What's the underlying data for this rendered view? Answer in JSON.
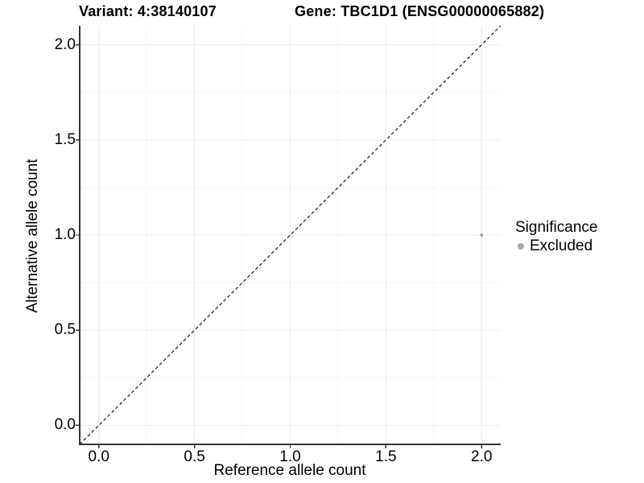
{
  "chart_data": {
    "type": "scatter",
    "titles": [
      {
        "text": "Variant: 4:38140107"
      },
      {
        "text": "Gene: TBC1D1 (ENSG00000065882)"
      }
    ],
    "xlabel": "Reference allele count",
    "ylabel": "Alternative allele count",
    "xlim": [
      -0.1,
      2.1
    ],
    "ylim": [
      -0.1,
      2.1
    ],
    "xticks": [
      0.0,
      0.5,
      1.0,
      1.5,
      2.0
    ],
    "yticks": [
      0.0,
      0.5,
      1.0,
      1.5,
      2.0
    ],
    "xtick_labels": [
      "0.0",
      "0.5",
      "1.0",
      "1.5",
      "2.0"
    ],
    "ytick_labels": [
      "0.0",
      "0.5",
      "1.0",
      "1.5",
      "2.0"
    ],
    "grid": {
      "major": true,
      "minor": true
    },
    "identity_line": {
      "slope": 1,
      "intercept": 0,
      "linetype": "dashed",
      "color": "#000000"
    },
    "points": [
      {
        "x": 2,
        "y": 1,
        "significance": "Excluded"
      }
    ],
    "legend": {
      "title": "Significance",
      "position": "right",
      "entries": [
        {
          "label": "Excluded",
          "color": "#a8a8a8"
        }
      ]
    },
    "style": {
      "axis_color": "#333333",
      "text_color": "#000000",
      "grid_major_color": "#ececec",
      "grid_minor_color": "#f5f5f5",
      "background": "#ffffff"
    }
  }
}
